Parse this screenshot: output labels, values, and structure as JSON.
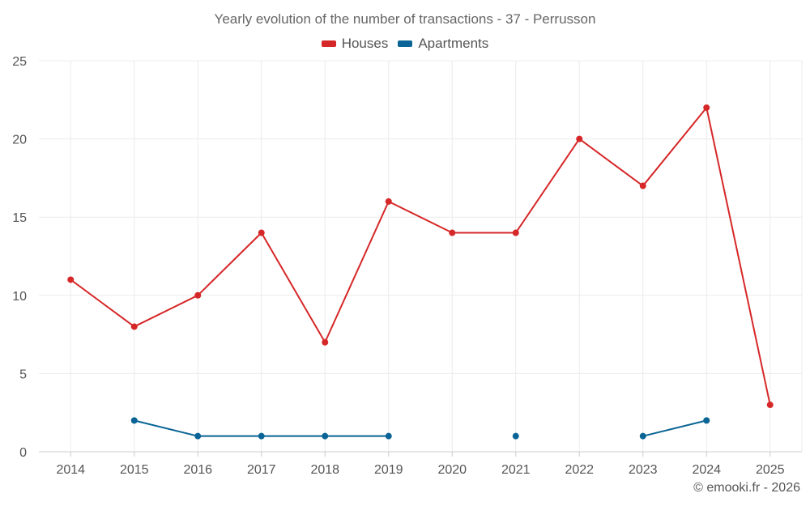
{
  "chart_data": {
    "type": "line",
    "title": "Yearly evolution of the number of transactions - 37 - Perrusson",
    "categories": [
      "2014",
      "2015",
      "2016",
      "2017",
      "2018",
      "2019",
      "2020",
      "2021",
      "2022",
      "2023",
      "2024",
      "2025"
    ],
    "series": [
      {
        "name": "Houses",
        "color": "#d62728",
        "values": [
          11,
          8,
          10,
          14,
          7,
          16,
          14,
          14,
          20,
          17,
          22,
          3
        ]
      },
      {
        "name": "Apartments",
        "color": "#0a6496",
        "values": [
          null,
          2,
          1,
          1,
          1,
          1,
          null,
          1,
          null,
          1,
          2,
          null
        ]
      }
    ],
    "ylim": [
      0,
      25
    ],
    "yticks": [
      "0",
      "5",
      "10",
      "15",
      "20",
      "25"
    ],
    "xlabel": "",
    "ylabel": "",
    "grid": true,
    "legend": "top-center"
  },
  "credit": "© emooki.fr - 2026"
}
